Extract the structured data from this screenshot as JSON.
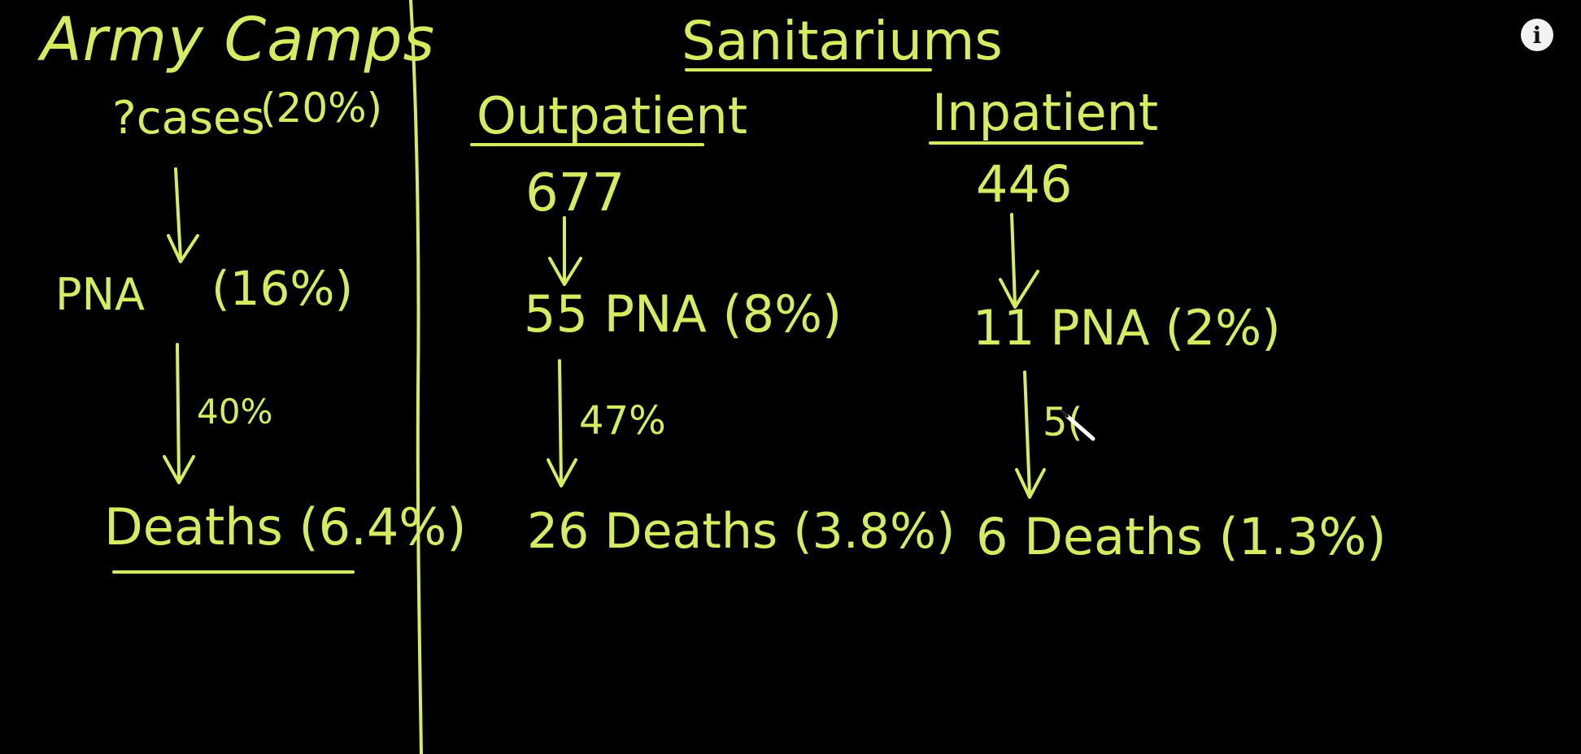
{
  "board": {
    "ink_color": "#d6ec5e",
    "background": "#000000"
  },
  "info_button": {
    "label": "i"
  },
  "army_camps": {
    "title": "Army Camps",
    "cases": "?cases",
    "cases_pct": "(20%)",
    "pna": "PNA",
    "pna_pct": "(16%)",
    "death_rate": "40%",
    "deaths": "Deaths (6.4%)"
  },
  "sanitariums": {
    "title": "Sanitariums",
    "outpatient": {
      "heading": "Outpatient",
      "count": "677",
      "pna": "55 PNA (8%)",
      "death_rate": "47%",
      "deaths": "26 Deaths (3.8%)"
    },
    "inpatient": {
      "heading": "Inpatient",
      "count": "446",
      "pna": "11 PNA (2%)",
      "death_rate": "5(",
      "deaths": "6 Deaths (1.3%)"
    }
  }
}
